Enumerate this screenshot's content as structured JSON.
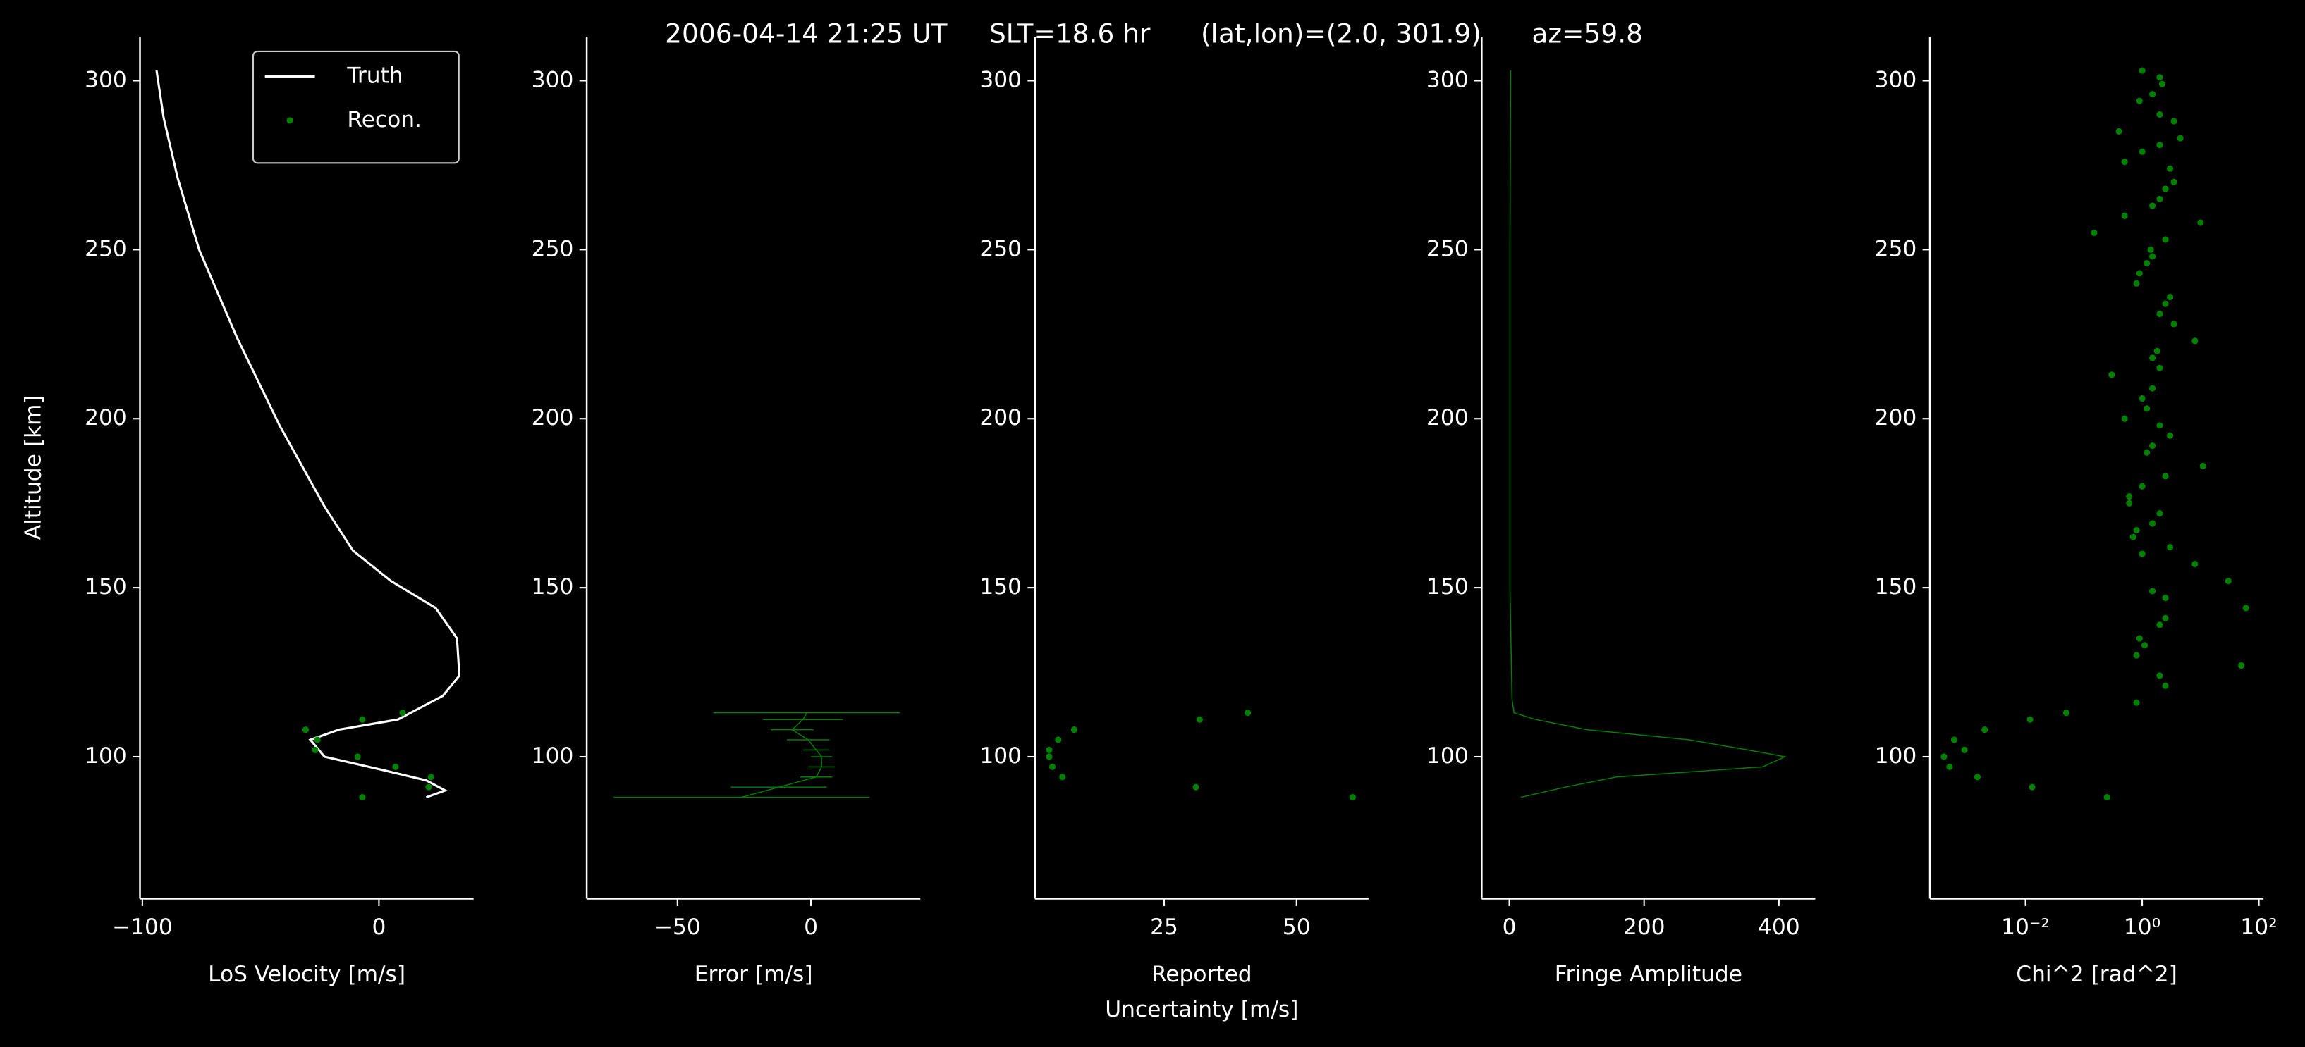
{
  "title": "2006-04-14 21:25 UT     SLT=18.6 hr      (lat,lon)=(2.0, 301.9)      az=59.8",
  "chart_data": [
    {
      "type": "line",
      "xlabel": [
        "LoS Velocity [m/s]"
      ],
      "ylabel": "Altitude [km]",
      "xlim": [
        -101,
        40
      ],
      "xticks": [
        {
          "value": -100,
          "label": "−100"
        },
        0
      ],
      "ylim": [
        58,
        313
      ],
      "yticks": [
        100,
        150,
        200,
        250,
        300
      ],
      "legend": "upper right",
      "series": [
        {
          "name": "Truth",
          "type": "line",
          "color": "#ffffff",
          "x": [
            -94,
            -91,
            -85,
            -76,
            -60,
            -42,
            -23,
            -11,
            5,
            24,
            33,
            34,
            27,
            8,
            -17,
            -29,
            -23,
            2,
            20,
            28,
            20
          ],
          "y": [
            303,
            289,
            271,
            250,
            224,
            198,
            174,
            161,
            152,
            144,
            135,
            124,
            118,
            111,
            108,
            105,
            100,
            96,
            93,
            90,
            88
          ]
        },
        {
          "name": "Recon.",
          "type": "scatter",
          "color": "#008000",
          "x": [
            10,
            -7,
            -31,
            -26,
            -27,
            -9,
            7,
            22,
            21,
            -7
          ],
          "y": [
            113,
            111,
            108,
            105,
            102,
            100,
            97,
            94,
            91,
            88
          ]
        }
      ]
    },
    {
      "type": "errorbar",
      "xlabel": [
        "Error [m/s]"
      ],
      "xlim": [
        -84,
        41
      ],
      "xticks": [
        {
          "value": -50,
          "label": "−50"
        },
        0
      ],
      "ylim": [
        58,
        313
      ],
      "yticks": [
        100,
        150,
        200,
        250,
        300
      ],
      "series": [
        {
          "type": "errorbar",
          "color": "#008000",
          "x": [
            -1.6,
            -3,
            -7,
            -1,
            2,
            4,
            4,
            2,
            -12,
            -26
          ],
          "xerr": [
            35,
            15,
            8,
            8,
            5,
            4,
            5,
            6,
            18,
            48
          ],
          "y": [
            113,
            111,
            108,
            105,
            102,
            100,
            97,
            94,
            91,
            88
          ]
        }
      ]
    },
    {
      "type": "scatter",
      "xlabel": [
        "Reported",
        "Uncertainty [m/s]"
      ],
      "xlim": [
        0.6,
        63.6
      ],
      "xticks": [
        25,
        50
      ],
      "ylim": [
        58,
        313
      ],
      "yticks": [
        100,
        150,
        200,
        250,
        300
      ],
      "series": [
        {
          "type": "scatter",
          "color": "#008000",
          "x": [
            40.8,
            31.7,
            8,
            5,
            3.3,
            3.3,
            3.9,
            5.8,
            31,
            60.6
          ],
          "y": [
            113,
            111,
            108,
            105,
            102,
            100,
            97,
            94,
            91,
            88
          ]
        }
      ]
    },
    {
      "type": "line",
      "xlabel": [
        "Fringe Amplitude"
      ],
      "xlim": [
        -41,
        454
      ],
      "xticks": [
        0,
        200,
        400
      ],
      "ylim": [
        58,
        313
      ],
      "yticks": [
        100,
        150,
        200,
        250,
        300
      ],
      "series": [
        {
          "type": "line",
          "color": "#008000",
          "x": [
            2,
            1,
            1,
            1,
            4,
            7,
            39,
            115,
            267,
            354,
            409,
            376,
            159,
            83,
            17
          ],
          "y": [
            303,
            250,
            200,
            150,
            117,
            113,
            111,
            108,
            105,
            102,
            100,
            97,
            94,
            91,
            88
          ]
        }
      ]
    },
    {
      "type": "scatter",
      "xlabel": [
        "Chi^2 [rad^2]"
      ],
      "xscale": "log",
      "xlim": [
        0.00023,
        120
      ],
      "xticks": [
        {
          "value": 0.01,
          "label": "10⁻²"
        },
        {
          "value": 1,
          "label": "10⁰"
        },
        {
          "value": 100,
          "label": "10²"
        }
      ],
      "ylim": [
        58,
        313
      ],
      "yticks": [
        100,
        150,
        200,
        250,
        300
      ],
      "series": [
        {
          "type": "scatter",
          "color": "#008000",
          "x": [
            1.0,
            2.0,
            2.2,
            1.5,
            0.9,
            2.0,
            3.5,
            0.4,
            4.5,
            2.0,
            1.0,
            0.5,
            3.0,
            3.5,
            2.5,
            2.0,
            1.5,
            0.5,
            10,
            0.15,
            2.5,
            1.4,
            1.5,
            1.2,
            0.9,
            0.8,
            3.0,
            2.5,
            2.0,
            3.5,
            8,
            1.8,
            1.5,
            2.0,
            0.3,
            1.5,
            1.0,
            1.2,
            0.5,
            2.0,
            3.0,
            1.5,
            1.2,
            11,
            2.5,
            1.0,
            0.6,
            0.6,
            2.0,
            1.5,
            0.8,
            0.7,
            3.0,
            1.0,
            8,
            30,
            1.5,
            2.5,
            60,
            2.5,
            2.0,
            0.9,
            1.1,
            0.8,
            50,
            2.0,
            2.5,
            0.8,
            0.05,
            0.012,
            0.002,
            0.0006,
            0.0009,
            0.0004,
            0.0005,
            0.0015,
            0.013,
            0.25
          ],
          "y": [
            303,
            301,
            299,
            296,
            294,
            290,
            288,
            285,
            283,
            281,
            279,
            276,
            274,
            270,
            268,
            265,
            263,
            260,
            258,
            255,
            253,
            250,
            248,
            246,
            243,
            240,
            236,
            234,
            231,
            228,
            223,
            220,
            218,
            215,
            213,
            209,
            206,
            203,
            200,
            198,
            195,
            192,
            190,
            186,
            183,
            180,
            177,
            175,
            172,
            169,
            167,
            165,
            162,
            160,
            157,
            152,
            149,
            147,
            144,
            141,
            139,
            135,
            133,
            130,
            127,
            124,
            121,
            116,
            113,
            111,
            108,
            105,
            102,
            100,
            97,
            94,
            91,
            88
          ]
        }
      ]
    }
  ]
}
